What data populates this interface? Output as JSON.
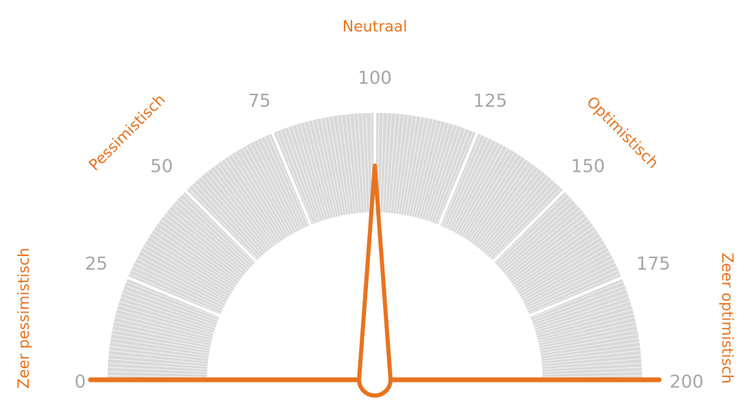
{
  "chart_data": {
    "type": "gauge",
    "title": "",
    "range": [
      0,
      200
    ],
    "value": 100,
    "major_ticks": [
      0,
      25,
      50,
      75,
      100,
      125,
      150,
      175,
      200
    ],
    "tick_labels": [
      "0",
      "25",
      "50",
      "75",
      "100",
      "125",
      "150",
      "175",
      "200"
    ],
    "zone_labels": [
      {
        "label": "Zeer pessimistisch",
        "value": 0
      },
      {
        "label": "Pessimistisch",
        "value": 50
      },
      {
        "label": "Neutraal",
        "value": 100
      },
      {
        "label": "Optimistisch",
        "value": 150
      },
      {
        "label": "Zeer optimistisch",
        "value": 200
      }
    ],
    "colors": {
      "accent": "#e8731e",
      "band": "#d9d9d9",
      "band_line": "#ffffff",
      "tick_text": "#a6a6a6"
    }
  }
}
